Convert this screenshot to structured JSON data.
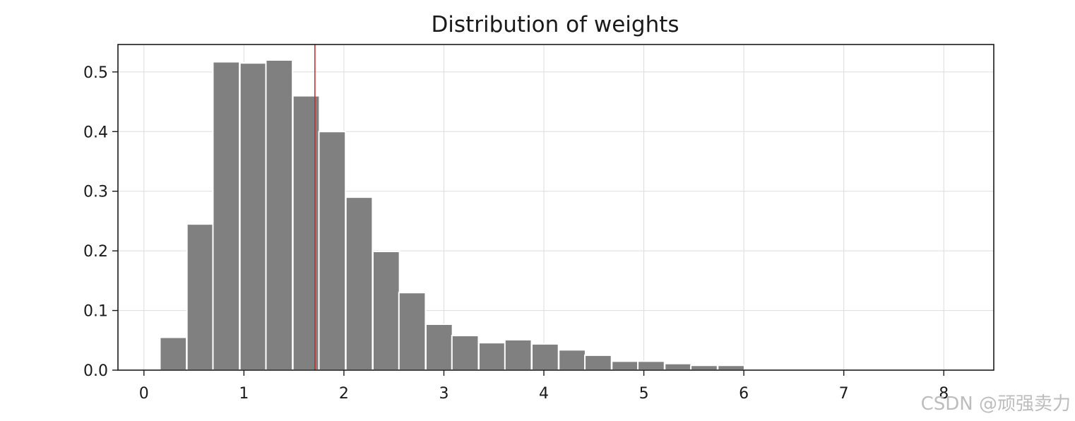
{
  "chart_data": {
    "type": "bar",
    "title": "Distribution of weights",
    "xlabel": "",
    "ylabel": "",
    "xlim": [
      -0.26,
      8.5
    ],
    "ylim": [
      0,
      0.546
    ],
    "bin_width": 0.266,
    "grid": true,
    "x_ticks": [
      "0",
      "1",
      "2",
      "3",
      "4",
      "5",
      "6",
      "7",
      "8"
    ],
    "y_ticks": [
      "0.0",
      "0.1",
      "0.2",
      "0.3",
      "0.4",
      "0.5"
    ],
    "bins": [
      {
        "x0": 0.16,
        "value": 0.055
      },
      {
        "x0": 0.43,
        "value": 0.245
      },
      {
        "x0": 0.69,
        "value": 0.517
      },
      {
        "x0": 0.96,
        "value": 0.515
      },
      {
        "x0": 1.22,
        "value": 0.52
      },
      {
        "x0": 1.49,
        "value": 0.46
      },
      {
        "x0": 1.75,
        "value": 0.4
      },
      {
        "x0": 2.02,
        "value": 0.29
      },
      {
        "x0": 2.29,
        "value": 0.199
      },
      {
        "x0": 2.55,
        "value": 0.13
      },
      {
        "x0": 2.82,
        "value": 0.077
      },
      {
        "x0": 3.08,
        "value": 0.058
      },
      {
        "x0": 3.35,
        "value": 0.046
      },
      {
        "x0": 3.61,
        "value": 0.051
      },
      {
        "x0": 3.88,
        "value": 0.044
      },
      {
        "x0": 4.15,
        "value": 0.034
      },
      {
        "x0": 4.41,
        "value": 0.025
      },
      {
        "x0": 4.68,
        "value": 0.015
      },
      {
        "x0": 4.94,
        "value": 0.015
      },
      {
        "x0": 5.21,
        "value": 0.011
      },
      {
        "x0": 5.47,
        "value": 0.008
      },
      {
        "x0": 5.74,
        "value": 0.008
      }
    ],
    "vline": {
      "x": 1.71,
      "color": "#d62728"
    },
    "bar_color": "#808080",
    "bar_edge_color": "#ffffff",
    "grid_color": "#dddddd"
  },
  "watermark": "CSDN @顽强卖力"
}
